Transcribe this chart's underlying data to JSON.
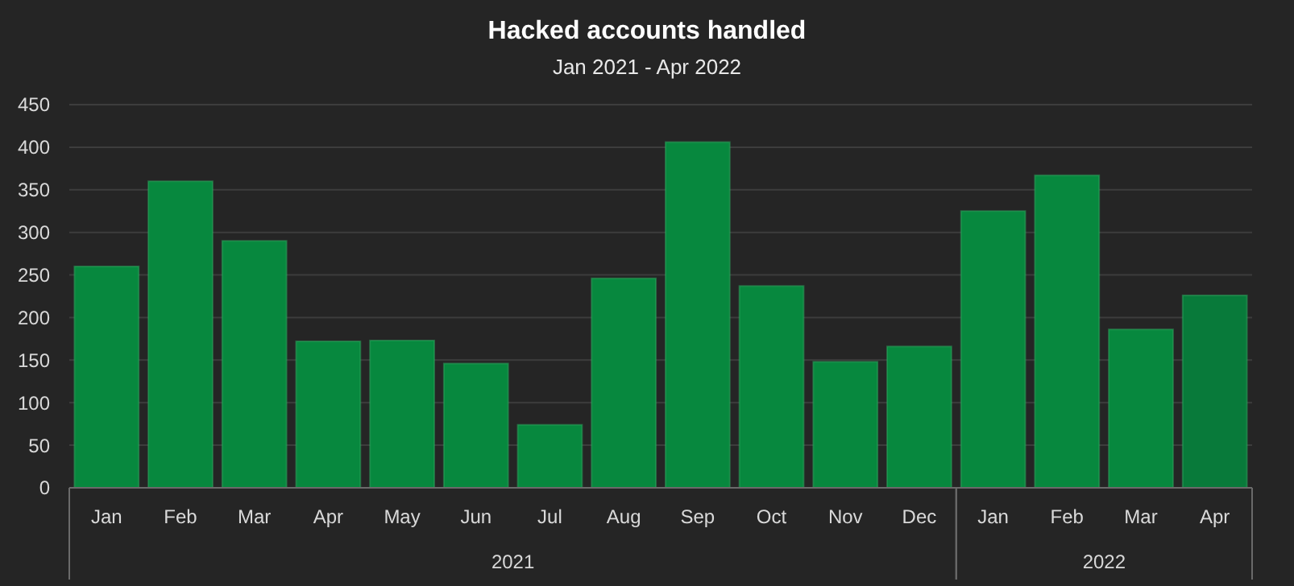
{
  "chart_data": {
    "type": "bar",
    "title": "Hacked accounts handled",
    "subtitle": "Jan 2021 - Apr 2022",
    "categories": [
      "Jan",
      "Feb",
      "Mar",
      "Apr",
      "May",
      "Jun",
      "Jul",
      "Aug",
      "Sep",
      "Oct",
      "Nov",
      "Dec",
      "Jan",
      "Feb",
      "Mar",
      "Apr"
    ],
    "values": [
      260,
      360,
      290,
      172,
      173,
      146,
      74,
      246,
      406,
      237,
      148,
      166,
      325,
      367,
      186,
      226
    ],
    "colors": [
      "#07883e",
      "#07883e",
      "#07883e",
      "#07883e",
      "#07883e",
      "#07883e",
      "#07883e",
      "#07883e",
      "#07883e",
      "#07883e",
      "#07883e",
      "#07883e",
      "#07883e",
      "#07883e",
      "#07883e",
      "#087a3a"
    ],
    "annotations": [
      "2021",
      "2022"
    ],
    "ylim": [
      0,
      450
    ],
    "yticks": [
      0,
      50,
      100,
      150,
      200,
      250,
      300,
      350,
      400,
      450
    ],
    "grid": "y"
  }
}
